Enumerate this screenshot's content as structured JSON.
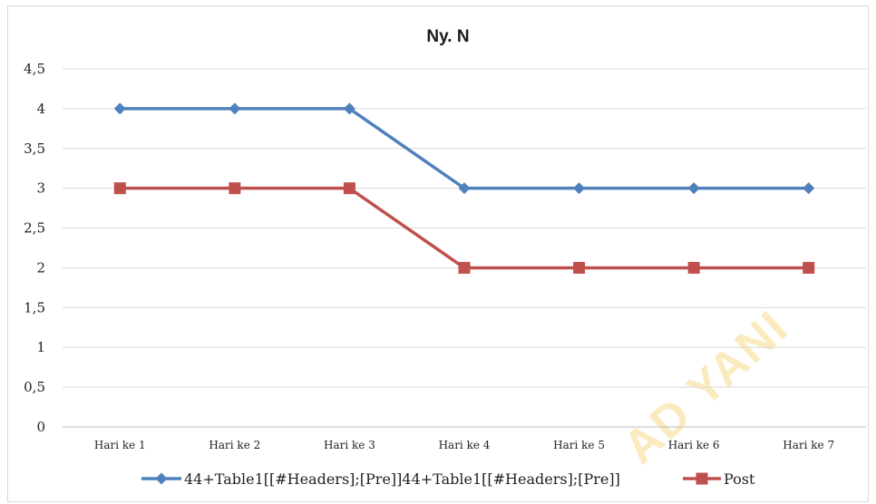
{
  "watermark": "AD YANI",
  "chart_data": {
    "type": "line",
    "title": "Ny. N",
    "xlabel": "",
    "ylabel": "",
    "categories": [
      "Hari ke 1",
      "Hari ke 2",
      "Hari ke 3",
      "Hari ke 4",
      "Hari ke 5",
      "Hari ke 6",
      "Hari ke 7"
    ],
    "y_ticks": [
      "0",
      "0,5",
      "1",
      "1,5",
      "2",
      "2,5",
      "3",
      "3,5",
      "4",
      "4,5"
    ],
    "ylim": [
      0,
      4.5
    ],
    "grid": true,
    "legend_position": "bottom",
    "series": [
      {
        "name": "44+Table1[[#Headers];[Pre]]44+Table1[[#Headers];[Pre]]",
        "values": [
          4,
          4,
          4,
          3,
          3,
          3,
          3
        ],
        "color": "#4f81bd",
        "marker": "diamond"
      },
      {
        "name": "Post",
        "values": [
          3,
          3,
          3,
          2,
          2,
          2,
          2
        ],
        "color": "#c0504d",
        "marker": "square"
      }
    ]
  }
}
